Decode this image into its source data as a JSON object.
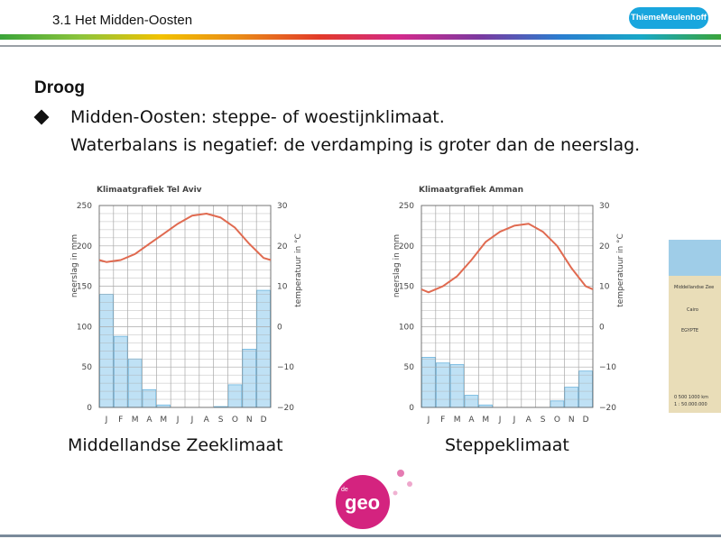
{
  "header": {
    "title": "3.1 Het Midden-Oosten",
    "logo_text": "ThiemeMeulenhoff"
  },
  "content": {
    "heading": "Droog",
    "bullet_line1": "Midden-Oosten: steppe- of woestijnklimaat.",
    "bullet_line2": "Waterbalans is negatief: de verdamping is groter dan de neerslag."
  },
  "captions": {
    "left": "Middellandse Zeeklimaat",
    "right": "Steppeklimaat"
  },
  "map_labels": {
    "label1": "Middellandse Zee",
    "label2": "Cairo",
    "label3": "EGYPTE",
    "scale": "0   500  1000 km",
    "scale2": "1 : 50.000.000"
  },
  "footer_logo": {
    "prefix": "de",
    "word": "geo"
  },
  "colors": {
    "bar": "#bfe1f5",
    "bar_stroke": "#6ab4de",
    "temp_line": "#e06a50",
    "accent": "#d4237f"
  },
  "chart_data": [
    {
      "type": "bar+line",
      "title": "Klimaatgrafiek Tel Aviv",
      "categories": [
        "J",
        "F",
        "M",
        "A",
        "M",
        "J",
        "J",
        "A",
        "S",
        "O",
        "N",
        "D"
      ],
      "y_left_label": "neerslag in mm",
      "y_left_range": [
        0,
        250
      ],
      "y_left_ticks": [
        "0",
        "50",
        "100",
        "150",
        "200",
        "250"
      ],
      "y_right_label": "temperatuur in °C",
      "y_right_range": [
        -20,
        30
      ],
      "y_right_ticks": [
        "-20",
        "-10",
        "0",
        "10",
        "20",
        "30"
      ],
      "precipitation": [
        140,
        88,
        60,
        22,
        3,
        0,
        0,
        0,
        1,
        28,
        72,
        145
      ],
      "temperature": [
        16,
        16.5,
        18,
        20.5,
        23,
        25.5,
        27.5,
        28,
        27,
        24.5,
        20.5,
        17
      ]
    },
    {
      "type": "bar+line",
      "title": "Klimaatgrafiek Amman",
      "categories": [
        "J",
        "F",
        "M",
        "A",
        "M",
        "J",
        "J",
        "A",
        "S",
        "O",
        "N",
        "D"
      ],
      "y_left_label": "neerslag in mm",
      "y_left_range": [
        0,
        250
      ],
      "y_left_ticks": [
        "0",
        "50",
        "100",
        "150",
        "200",
        "250"
      ],
      "y_right_label": "temperatuur in °C",
      "y_right_range": [
        -20,
        30
      ],
      "y_right_ticks": [
        "-20",
        "-10",
        "0",
        "10",
        "20",
        "30"
      ],
      "precipitation": [
        62,
        55,
        53,
        15,
        3,
        0,
        0,
        0,
        0,
        8,
        25,
        45
      ],
      "temperature": [
        8.5,
        10,
        12.5,
        16.5,
        21,
        23.5,
        25,
        25.5,
        23.5,
        20,
        14.5,
        10
      ]
    }
  ]
}
